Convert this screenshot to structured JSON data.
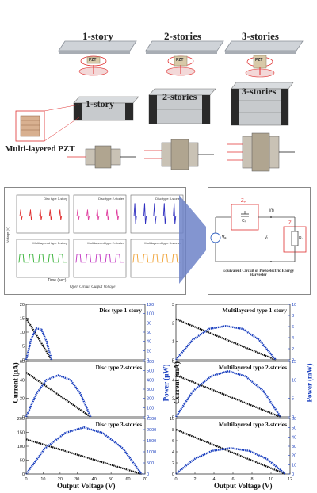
{
  "top": {
    "plate_labels": [
      "1-story",
      "2-stories",
      "3-stories"
    ],
    "pzt_label": "PZT",
    "building_labels": [
      "1-story",
      "2-stories",
      "3-stories"
    ],
    "multilayer_label": "Multi-layered PZT"
  },
  "middle": {
    "waveform_panels": [
      {
        "legend": "Disc type 1-story",
        "color": "#e03030"
      },
      {
        "legend": "Disc type 2-stories",
        "color": "#e040a0"
      },
      {
        "legend": "Disc type 3-stories",
        "color": "#3030c0"
      },
      {
        "legend": "Multilayered type 1-story",
        "color": "#30b030"
      },
      {
        "legend": "Multilayered type 2-stories",
        "color": "#c030c0"
      },
      {
        "legend": "Multilayered type 3-stories",
        "color": "#f0a030"
      }
    ],
    "ylabel": "Voltage (V)",
    "xlabel": "Time (sec)",
    "caption": "Open Circuit Output Voltage",
    "circuit": {
      "zp_label": "Zₚ",
      "cp_label": "Cₚ",
      "vp_label": "Vₚ",
      "vl_label": "Vₗ",
      "zl_label": "Zₗ",
      "rl_label": "Rₗ",
      "current_label": "i(t)",
      "caption": "Equivalent Circuit of Piezoelectric Energy Harvester"
    }
  },
  "chart_data": [
    {
      "type": "line",
      "title": "Disc type 1-story",
      "xlim": [
        0,
        70
      ],
      "ylim_current": [
        0,
        20
      ],
      "ylim_power": [
        0,
        120
      ],
      "current": {
        "x": [
          0,
          15
        ],
        "y": [
          15,
          0
        ]
      },
      "power": {
        "x": [
          0,
          3,
          6,
          9,
          12,
          15
        ],
        "y": [
          0,
          45,
          68,
          66,
          40,
          0
        ]
      }
    },
    {
      "type": "line",
      "title": "Disc type 2-stories",
      "xlim": [
        0,
        70
      ],
      "ylim_current": [
        0,
        60
      ],
      "ylim_power": [
        0,
        600
      ],
      "current": {
        "x": [
          0,
          38
        ],
        "y": [
          48,
          0
        ]
      },
      "power": {
        "x": [
          0,
          6,
          12,
          19,
          26,
          32,
          38
        ],
        "y": [
          0,
          250,
          400,
          450,
          400,
          250,
          0
        ]
      }
    },
    {
      "type": "line",
      "title": "Disc type 3-stories",
      "xlim": [
        0,
        70
      ],
      "ylim_current": [
        0,
        200
      ],
      "ylim_power": [
        0,
        2500
      ],
      "current": {
        "x": [
          0,
          68
        ],
        "y": [
          125,
          0
        ]
      },
      "power": {
        "x": [
          0,
          11,
          23,
          34,
          45,
          57,
          68
        ],
        "y": [
          0,
          1150,
          1850,
          2100,
          1850,
          1150,
          0
        ]
      }
    },
    {
      "type": "line",
      "title": "Multilayered type 1-story",
      "xlim": [
        0,
        12
      ],
      "ylim_current": [
        0,
        3
      ],
      "ylim_power": [
        0,
        10
      ],
      "current": {
        "x": [
          0,
          10.5
        ],
        "y": [
          2.2,
          0
        ]
      },
      "power": {
        "x": [
          0,
          1.75,
          3.5,
          5.25,
          7,
          8.75,
          10.5
        ],
        "y": [
          0,
          3.6,
          5.6,
          6.1,
          5.6,
          3.6,
          0
        ]
      }
    },
    {
      "type": "line",
      "title": "Multilayered type 2-stories",
      "xlim": [
        0,
        12
      ],
      "ylim_current": [
        0,
        6
      ],
      "ylim_power": [
        0,
        15
      ],
      "current": {
        "x": [
          0,
          11
        ],
        "y": [
          4.5,
          0
        ]
      },
      "power": {
        "x": [
          0,
          1.8,
          3.7,
          5.5,
          7.3,
          9.2,
          11
        ],
        "y": [
          0,
          7,
          11,
          12.4,
          11,
          7,
          0
        ]
      }
    },
    {
      "type": "line",
      "title": "Multilayered type 3-stories",
      "xlim": [
        0,
        12
      ],
      "ylim_current": [
        0,
        10
      ],
      "ylim_power": [
        0,
        60
      ],
      "current": {
        "x": [
          0,
          11.5
        ],
        "y": [
          8,
          0
        ]
      },
      "power": {
        "x": [
          0,
          1.9,
          3.8,
          5.75,
          7.7,
          9.6,
          11.5
        ],
        "y": [
          0,
          16,
          25,
          28,
          25,
          16,
          0
        ]
      }
    }
  ],
  "bottom": {
    "xlabel": "Output Voltage (V)",
    "left_ylabel": "Current (μA)",
    "left_y2label": "Power (μW)",
    "right_ylabel": "Current (mA)",
    "right_y2label": "Power (mW)",
    "left_xticks": [
      "0",
      "10",
      "20",
      "30",
      "40",
      "50",
      "60",
      "70"
    ],
    "right_xticks": [
      "0",
      "2",
      "4",
      "6",
      "8",
      "10",
      "12"
    ],
    "yticks_left": [
      [
        "0",
        "5",
        "10",
        "15",
        "20"
      ],
      [
        "0",
        "20",
        "40",
        "60"
      ],
      [
        "0",
        "50",
        "100",
        "150",
        "200"
      ]
    ],
    "y2ticks_left": [
      [
        "0",
        "20",
        "40",
        "60",
        "80",
        "100",
        "120"
      ],
      [
        "0",
        "100",
        "200",
        "300",
        "400",
        "500",
        "600"
      ],
      [
        "0",
        "500",
        "1000",
        "1500",
        "2000",
        "2500"
      ]
    ],
    "yticks_right": [
      [
        "0",
        "1",
        "2",
        "3"
      ],
      [
        "0",
        "2",
        "4",
        "6"
      ],
      [
        "0",
        "2",
        "4",
        "6",
        "8",
        "10"
      ]
    ],
    "y2ticks_right": [
      [
        "0",
        "2",
        "4",
        "6",
        "8",
        "10"
      ],
      [
        "0",
        "5",
        "10",
        "15"
      ],
      [
        "0",
        "10",
        "20",
        "30",
        "40",
        "50",
        "60"
      ]
    ]
  },
  "colors": {
    "current": "#111111",
    "power": "#1a3fbf",
    "highlight": "#e03030"
  }
}
